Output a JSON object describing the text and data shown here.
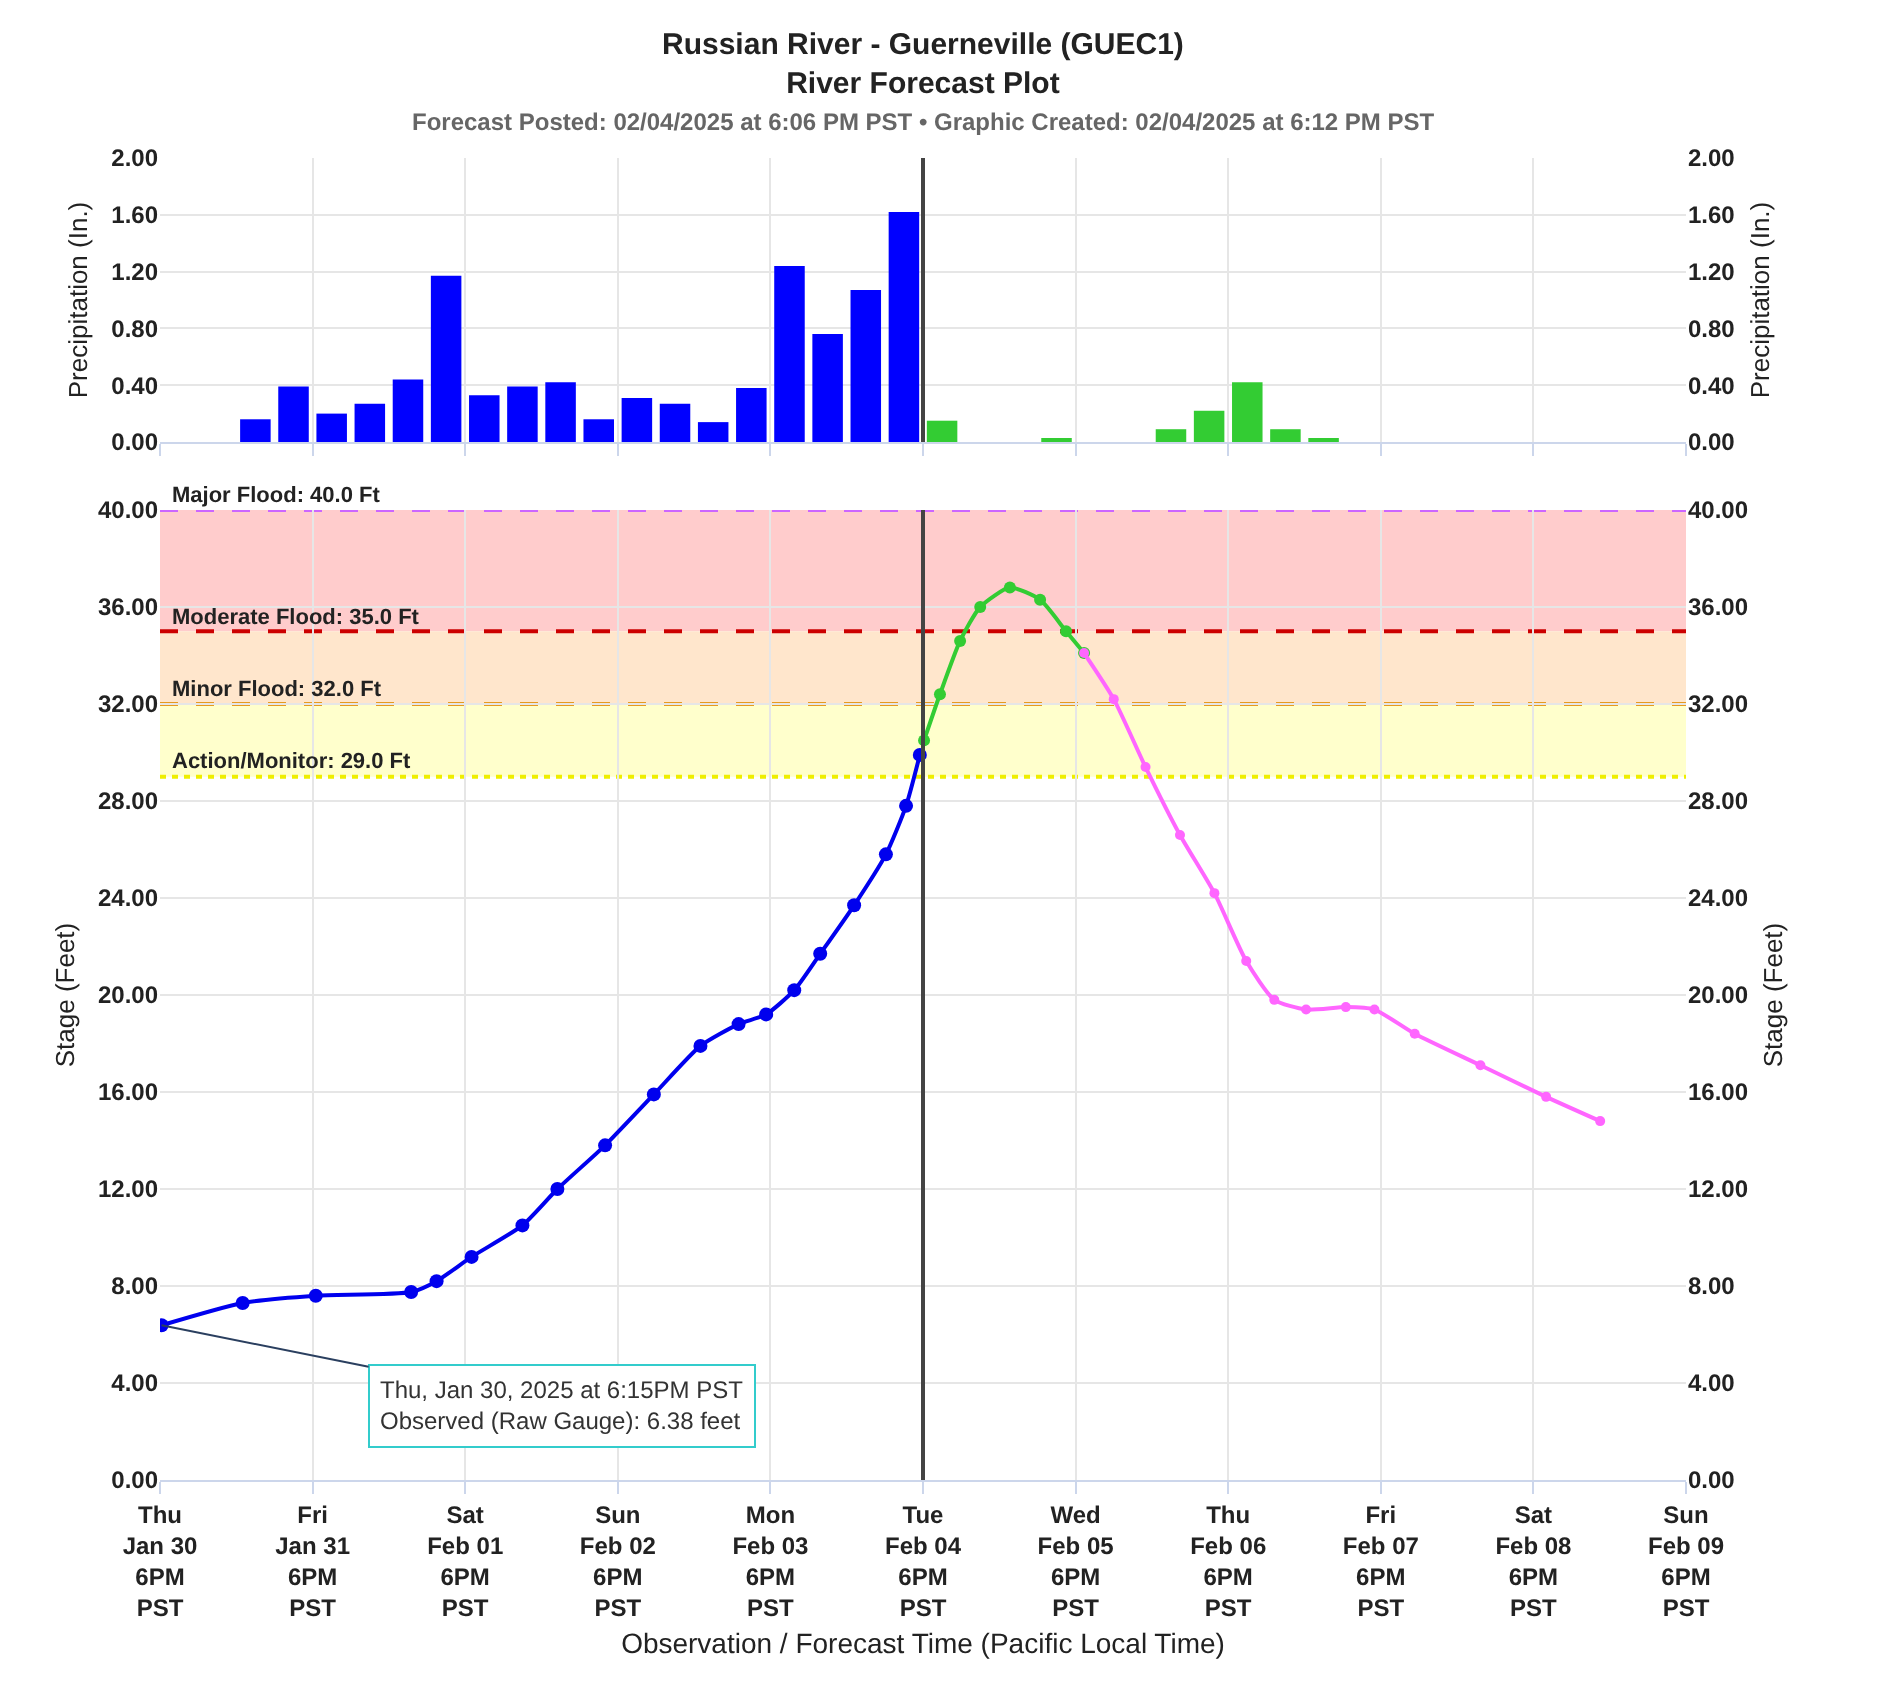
{
  "chart_data": [
    {
      "type": "bar",
      "title": "Russian River - Guerneville (GUEC1)\nRiver Forecast Plot",
      "subtitle": "Forecast Posted: 02/04/2025 at 6:06 PM PST • Graphic Created: 02/04/2025 at 6:12 PM PST",
      "ylabel": "Precipitation (In.)",
      "y2label": "Precipitation (In.)",
      "series": [
        {
          "color": "#0000ff",
          "x": [
            "2025-01-31T09:00",
            "2025-01-31T15:00",
            "2025-01-31T21:00",
            "2025-02-01T03:00",
            "2025-02-01T09:00",
            "2025-02-01T15:00",
            "2025-02-01T21:00",
            "2025-02-02T03:00",
            "2025-02-02T09:00",
            "2025-02-02T15:00",
            "2025-02-02T21:00",
            "2025-02-03T03:00",
            "2025-02-03T09:00",
            "2025-02-03T15:00",
            "2025-02-03T21:00",
            "2025-02-04T03:00",
            "2025-02-04T09:00",
            "2025-02-04T15:00"
          ],
          "values": [
            0.16,
            0.39,
            0.2,
            0.27,
            0.44,
            1.17,
            0.33,
            0.39,
            0.42,
            0.16,
            0.31,
            0.27,
            0.14,
            0.38,
            1.24,
            0.76,
            1.07,
            1.62
          ]
        },
        {
          "color": "#33cc33",
          "x": [
            "2025-02-04T21:00",
            "2025-02-05T03:00",
            "2025-02-05T09:00",
            "2025-02-05T15:00",
            "2025-02-05T21:00",
            "2025-02-06T03:00",
            "2025-02-06T09:00",
            "2025-02-06T15:00",
            "2025-02-06T21:00",
            "2025-02-07T03:00",
            "2025-02-07T09:00"
          ],
          "values": [
            0.15,
            0,
            0,
            0.02,
            0,
            0,
            0.09,
            0.22,
            0.42,
            0.09,
            0.02
          ]
        }
      ],
      "xlim": [
        "2025-01-30T18:00",
        "2025-02-09T18:00"
      ],
      "xticks": [
        "2025-01-30T18:00",
        "2025-01-31T18:00",
        "2025-02-01T18:00",
        "2025-02-02T18:00",
        "2025-02-03T18:00",
        "2025-02-04T18:00",
        "2025-02-05T18:00",
        "2025-02-06T18:00",
        "2025-02-07T18:00",
        "2025-02-08T18:00",
        "2025-02-09T18:00"
      ],
      "ylim": [
        0,
        2
      ],
      "yticks": [
        {
          "value": 0,
          "label": "0.00"
        },
        {
          "value": 0.4,
          "label": "0.40"
        },
        {
          "value": 0.8,
          "label": "0.80"
        },
        {
          "value": 1.2,
          "label": "1.20"
        },
        {
          "value": 1.6,
          "label": "1.60"
        },
        {
          "value": 2,
          "label": "2.00"
        }
      ],
      "y2lim": [
        0,
        2
      ],
      "y2ticks": [
        {
          "value": 0,
          "label": "0.00"
        },
        {
          "value": 0.4,
          "label": "0.40"
        },
        {
          "value": 0.8,
          "label": "0.80"
        },
        {
          "value": 1.2,
          "label": "1.20"
        },
        {
          "value": 1.6,
          "label": "1.60"
        },
        {
          "value": 2,
          "label": "2.00"
        }
      ],
      "ref_lines": [
        {
          "axis": "x",
          "value": "2025-02-04T18:00",
          "color": "#444444"
        }
      ],
      "tick_labels": "y",
      "grid": true
    },
    {
      "type": "line",
      "xlabel": "Observation / Forecast Time (Pacific Local Time)",
      "ylabel": "Stage (Feet)",
      "y2label": "Stage (Feet)",
      "marker": "circle",
      "line_style": "solid",
      "grid": true,
      "series": [
        {
          "color": "#0000ee",
          "x": [
            "2025-01-30T18:15",
            "2025-01-31T07:00",
            "2025-01-31T18:30",
            "2025-02-01T09:30",
            "2025-02-01T13:30",
            "2025-02-01T19:00",
            "2025-02-02T03:00",
            "2025-02-02T08:30",
            "2025-02-02T16:00",
            "2025-02-02T23:40",
            "2025-02-03T07:00",
            "2025-02-03T13:00",
            "2025-02-03T17:20",
            "2025-02-03T21:45",
            "2025-02-04T01:50",
            "2025-02-04T07:10",
            "2025-02-04T12:10",
            "2025-02-04T15:20",
            "2025-02-04T17:30"
          ],
          "values": [
            6.38,
            7.3,
            7.6,
            7.75,
            8.2,
            9.2,
            10.5,
            12.0,
            13.8,
            15.9,
            17.9,
            18.8,
            19.2,
            20.2,
            21.7,
            23.7,
            25.8,
            27.8,
            29.9
          ]
        },
        {
          "color": "#33cc33",
          "x": [
            "2025-02-04T18:10",
            "2025-02-04T20:40",
            "2025-02-04T23:50",
            "2025-02-05T03:00",
            "2025-02-05T07:40",
            "2025-02-05T12:25",
            "2025-02-05T16:30",
            "2025-02-05T19:20"
          ],
          "values": [
            30.5,
            32.4,
            34.6,
            36.0,
            36.8,
            36.3,
            35.0,
            34.1
          ]
        },
        {
          "color": "#ff66ff",
          "x": [
            "2025-02-05T19:20",
            "2025-02-06T00:00",
            "2025-02-06T05:00",
            "2025-02-06T10:25",
            "2025-02-06T15:50",
            "2025-02-06T20:50",
            "2025-02-07T01:15",
            "2025-02-07T06:15",
            "2025-02-07T12:30",
            "2025-02-07T17:00",
            "2025-02-07T23:20",
            "2025-02-08T09:40",
            "2025-02-08T20:00",
            "2025-02-09T04:30"
          ],
          "values": [
            34.1,
            32.2,
            29.4,
            26.6,
            24.2,
            21.4,
            19.8,
            19.4,
            19.5,
            19.4,
            18.4,
            17.1,
            15.8,
            14.8
          ]
        }
      ],
      "xlim": [
        "2025-01-30T18:00",
        "2025-02-09T18:00"
      ],
      "xticks": [
        {
          "value": "2025-01-30T18:00",
          "label": "Thu\nJan 30\n6PM\nPST"
        },
        {
          "value": "2025-01-31T18:00",
          "label": "Fri\nJan 31\n6PM\nPST"
        },
        {
          "value": "2025-02-01T18:00",
          "label": "Sat\nFeb 01\n6PM\nPST"
        },
        {
          "value": "2025-02-02T18:00",
          "label": "Sun\nFeb 02\n6PM\nPST"
        },
        {
          "value": "2025-02-03T18:00",
          "label": "Mon\nFeb 03\n6PM\nPST"
        },
        {
          "value": "2025-02-04T18:00",
          "label": "Tue\nFeb 04\n6PM\nPST"
        },
        {
          "value": "2025-02-05T18:00",
          "label": "Wed\nFeb 05\n6PM\nPST"
        },
        {
          "value": "2025-02-06T18:00",
          "label": "Thu\nFeb 06\n6PM\nPST"
        },
        {
          "value": "2025-02-07T18:00",
          "label": "Fri\nFeb 07\n6PM\nPST"
        },
        {
          "value": "2025-02-08T18:00",
          "label": "Sat\nFeb 08\n6PM\nPST"
        },
        {
          "value": "2025-02-09T18:00",
          "label": "Sun\nFeb 09\n6PM\nPST"
        }
      ],
      "ylim": [
        0,
        40
      ],
      "yticks": [
        {
          "value": 0,
          "label": "0.00"
        },
        {
          "value": 4,
          "label": "4.00"
        },
        {
          "value": 8,
          "label": "8.00"
        },
        {
          "value": 12,
          "label": "12.00"
        },
        {
          "value": 16,
          "label": "16.00"
        },
        {
          "value": 20,
          "label": "20.00"
        },
        {
          "value": 24,
          "label": "24.00"
        },
        {
          "value": 28,
          "label": "28.00"
        },
        {
          "value": 32,
          "label": "32.00"
        },
        {
          "value": 36,
          "label": "36.00"
        },
        {
          "value": 40,
          "label": "40.00"
        }
      ],
      "y2lim": [
        0,
        40
      ],
      "y2ticks": [
        {
          "value": 0,
          "label": "0.00"
        },
        {
          "value": 4,
          "label": "4.00"
        },
        {
          "value": 8,
          "label": "8.00"
        },
        {
          "value": 12,
          "label": "12.00"
        },
        {
          "value": 16,
          "label": "16.00"
        },
        {
          "value": 20,
          "label": "20.00"
        },
        {
          "value": 24,
          "label": "24.00"
        },
        {
          "value": 28,
          "label": "28.00"
        },
        {
          "value": 32,
          "label": "32.00"
        },
        {
          "value": 36,
          "label": "36.00"
        },
        {
          "value": 40,
          "label": "40.00"
        }
      ],
      "bands": [
        {
          "axis": "y",
          "from": 35,
          "to": 40,
          "color": "#ffcccc"
        },
        {
          "axis": "y",
          "from": 32,
          "to": 35,
          "color": "#ffe6cc"
        },
        {
          "axis": "y",
          "from": 29,
          "to": 32,
          "color": "#ffffcc"
        }
      ],
      "ref_lines": [
        {
          "axis": "y",
          "value": 40,
          "label": "Major Flood: 40.0 Ft",
          "color": "#cc66ff",
          "line_style": "dashed"
        },
        {
          "axis": "y",
          "value": 35,
          "label": "Moderate Flood: 35.0 Ft",
          "color": "#cc0000",
          "line_style": "dashed"
        },
        {
          "axis": "y",
          "value": 32,
          "label": "Minor Flood: 32.0 Ft",
          "color": "#e69a1f",
          "line_style": "dashed"
        },
        {
          "axis": "y",
          "value": 29,
          "label": "Action/Monitor: 29.0 Ft",
          "color": "#eeee00",
          "line_style": "dotted"
        },
        {
          "axis": "x",
          "value": "2025-02-04T18:00",
          "color": "#444444"
        }
      ],
      "annotations": [
        {
          "text": "Thu, Jan 30, 2025 at 6:15PM PST\nObserved (Raw Gauge): 6.38 feet",
          "x": "2025-01-30T18:15",
          "y": 6.38
        }
      ]
    }
  ]
}
